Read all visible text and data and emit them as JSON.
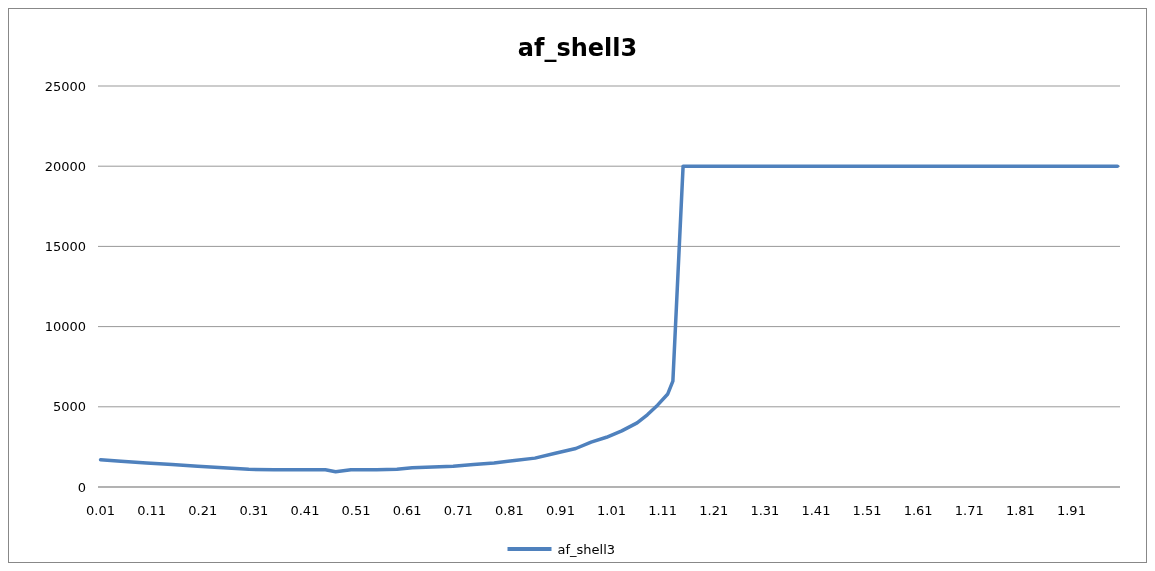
{
  "chart_data": {
    "type": "line",
    "title": "af_shell3",
    "legend": "bottom",
    "grid": "y",
    "line_style": "solid",
    "xlim": [
      0.005,
      2.005
    ],
    "xticks": [
      0.01,
      0.11,
      0.21,
      0.31,
      0.41,
      0.51,
      0.61,
      0.71,
      0.81,
      0.91,
      1.01,
      1.11,
      1.21,
      1.31,
      1.41,
      1.51,
      1.61,
      1.71,
      1.81,
      1.91
    ],
    "ylim": [
      0,
      25000
    ],
    "yticks": [
      0,
      5000,
      10000,
      15000,
      20000,
      25000
    ],
    "series": [
      {
        "name": "af_shell3",
        "color": "#4f81bd",
        "x": [
          0.01,
          0.05,
          0.1,
          0.15,
          0.2,
          0.25,
          0.3,
          0.35,
          0.4,
          0.45,
          0.47,
          0.5,
          0.55,
          0.59,
          0.62,
          0.66,
          0.7,
          0.74,
          0.78,
          0.82,
          0.86,
          0.9,
          0.94,
          0.97,
          1.0,
          1.03,
          1.06,
          1.08,
          1.1,
          1.12,
          1.13,
          1.14,
          1.15,
          2.0
        ],
        "values": [
          1700,
          1600,
          1500,
          1400,
          1300,
          1200,
          1100,
          1080,
          1080,
          1070,
          950,
          1080,
          1080,
          1100,
          1200,
          1250,
          1300,
          1400,
          1500,
          1650,
          1800,
          2100,
          2400,
          2800,
          3100,
          3500,
          4000,
          4500,
          5100,
          5800,
          6600,
          13300,
          20000,
          20000
        ]
      }
    ]
  }
}
